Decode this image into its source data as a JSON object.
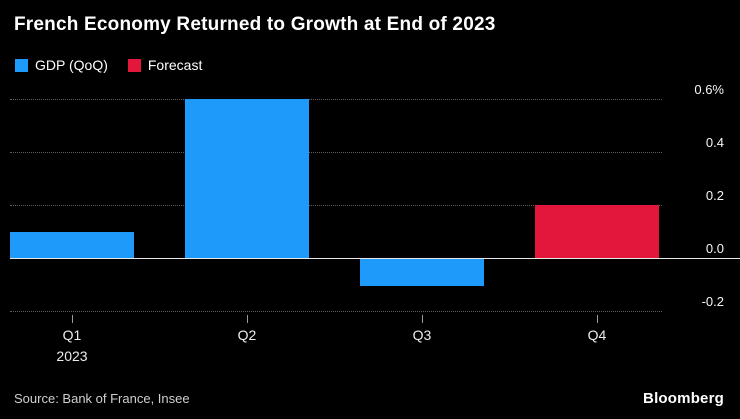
{
  "title": "French Economy Returned to Growth at End of 2023",
  "legend": [
    {
      "label": "GDP (QoQ)",
      "color": "#1e9bfa"
    },
    {
      "label": "Forecast",
      "color": "#e3173c"
    }
  ],
  "chart_data": {
    "type": "bar",
    "title": "French Economy Returned to Growth at End of 2023",
    "categories": [
      "Q1",
      "Q2",
      "Q3",
      "Q4"
    ],
    "x_sub_label": {
      "index": 0,
      "text": "2023"
    },
    "values": [
      0.1,
      0.6,
      -0.1,
      0.2
    ],
    "series_names": [
      "GDP (QoQ)",
      "GDP (QoQ)",
      "GDP (QoQ)",
      "Forecast"
    ],
    "bar_colors": [
      "#1e9bfa",
      "#1e9bfa",
      "#1e9bfa",
      "#e3173c"
    ],
    "xlabel": "",
    "ylabel": "",
    "unit": "%",
    "y_ticks": [
      0.6,
      0.4,
      0.2,
      0,
      -0.2
    ],
    "y_tick_labels": [
      "0.6%",
      "0.4",
      "0.2",
      "0.0",
      "-0.2"
    ],
    "ylim": [
      -0.3,
      0.65
    ],
    "grid": "dotted horizontal lines, solid zero line",
    "legend_position": "top-left"
  },
  "source": "Source: Bank of France, Insee",
  "brand": "Bloomberg"
}
